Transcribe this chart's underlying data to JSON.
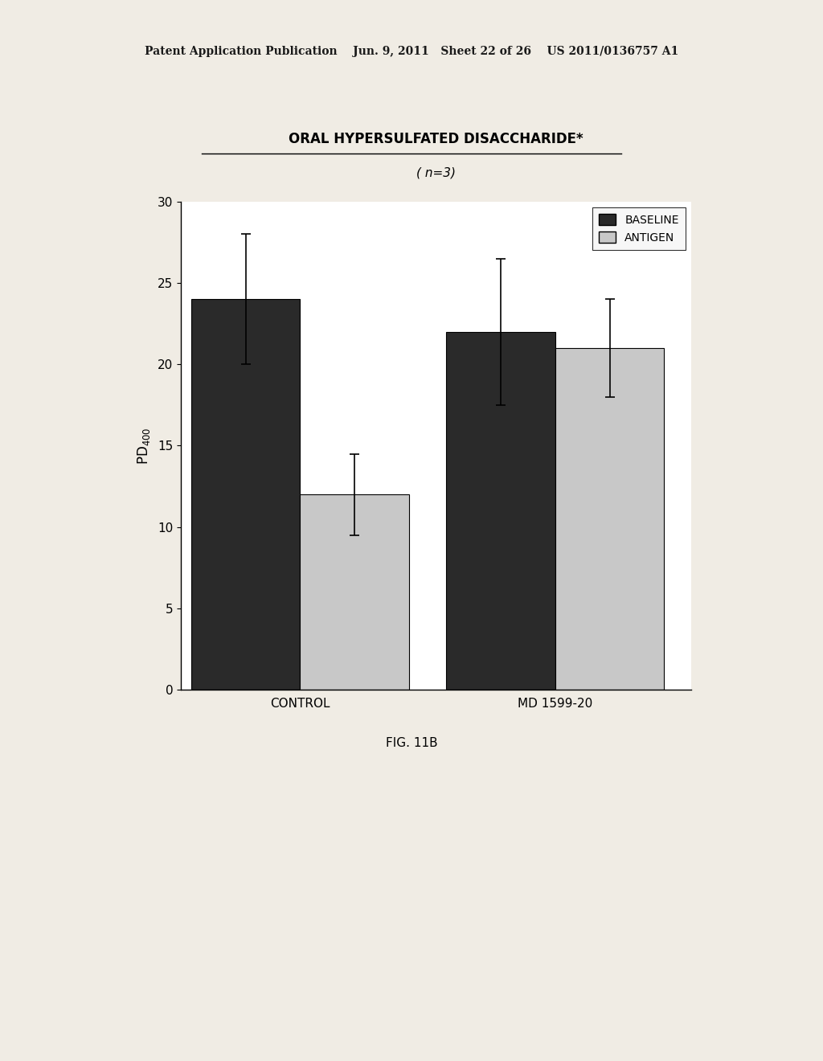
{
  "title_line1": "ORAL HYPERSULFATED DISACCHARIDE*",
  "title_line2": "( n=3)",
  "categories": [
    "CONTROL",
    "MD 1599-20"
  ],
  "baseline_values": [
    24.0,
    22.0
  ],
  "antigen_values": [
    12.0,
    21.0
  ],
  "baseline_errors": [
    4.0,
    4.5
  ],
  "antigen_errors": [
    2.5,
    3.0
  ],
  "ylabel": "PD$_{400}$",
  "ylim": [
    0,
    30
  ],
  "yticks": [
    0,
    5,
    10,
    15,
    20,
    25,
    30
  ],
  "baseline_color": "#2a2a2a",
  "antigen_color": "#c8c8c8",
  "legend_labels": [
    "BASELINE",
    "ANTIGEN"
  ],
  "bar_width": 0.32,
  "fig_caption": "FIG. 11B",
  "header_text": "Patent Application Publication    Jun. 9, 2011   Sheet 22 of 26    US 2011/0136757 A1",
  "background_color": "#f0ece4",
  "plot_bg_color": "#ffffff"
}
